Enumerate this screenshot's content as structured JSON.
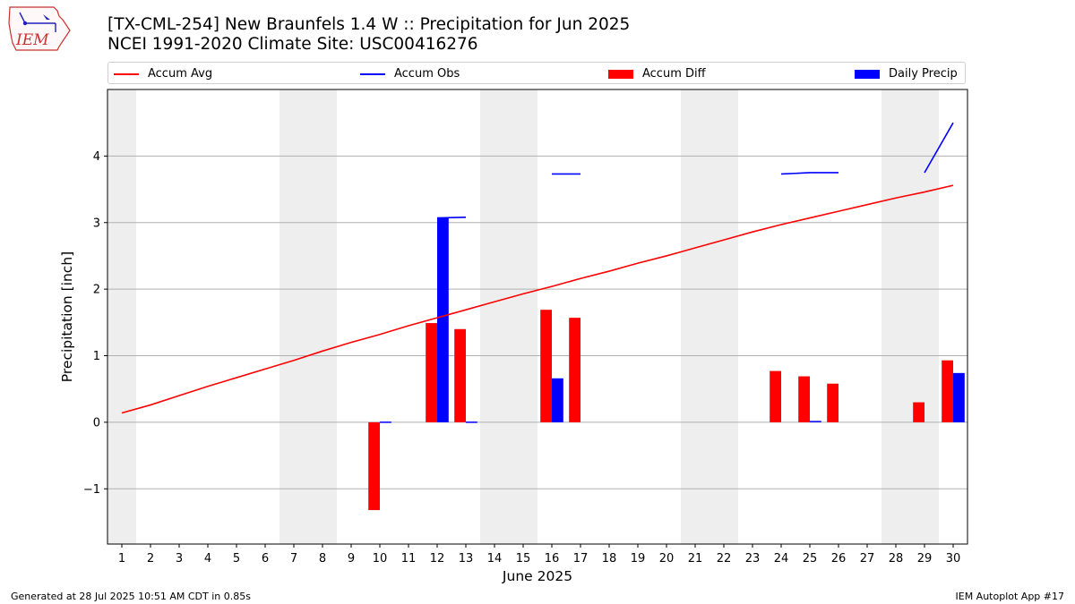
{
  "header": {
    "logo_text": "IEM",
    "title_line1": "[TX-CML-254] New Braunfels 1.4 W :: Precipitation for Jun 2025",
    "title_line2": "NCEI 1991-2020 Climate Site: USC00416276"
  },
  "legend": [
    {
      "label": "Accum Avg",
      "kind": "line",
      "color": "#ff0000"
    },
    {
      "label": "Accum Obs",
      "kind": "line",
      "color": "#0000ff"
    },
    {
      "label": "Accum Diff",
      "kind": "patch",
      "color": "#ff0000"
    },
    {
      "label": "Daily Precip",
      "kind": "patch",
      "color": "#0000ff"
    }
  ],
  "footer": {
    "left": "Generated at 28 Jul 2025 10:51 AM CDT in 0.85s",
    "right": "IEM Autoplot App #17"
  },
  "chart_data": {
    "type": "bar",
    "xlabel": "June 2025",
    "ylabel": "Precipitation [inch]",
    "xlim": [
      0.5,
      30.5
    ],
    "ylim": [
      -1.83,
      5.0
    ],
    "y_ticks": [
      -1,
      0,
      1,
      2,
      3,
      4
    ],
    "y_tick_labels": [
      "−1",
      "0",
      "1",
      "2",
      "3",
      "4"
    ],
    "grid": "y",
    "weekend_shading": [
      [
        0.5,
        1.5
      ],
      [
        6.5,
        8.5
      ],
      [
        13.5,
        15.5
      ],
      [
        20.5,
        22.5
      ],
      [
        27.5,
        29.5
      ]
    ],
    "days": [
      1,
      2,
      3,
      4,
      5,
      6,
      7,
      8,
      9,
      10,
      11,
      12,
      13,
      14,
      15,
      16,
      17,
      18,
      19,
      20,
      21,
      22,
      23,
      24,
      25,
      26,
      27,
      28,
      29,
      30
    ],
    "series": [
      {
        "name": "Accum Avg",
        "type": "line",
        "color": "#ff0000",
        "values": [
          0.14,
          0.26,
          0.4,
          0.54,
          0.67,
          0.8,
          0.93,
          1.07,
          1.2,
          1.32,
          1.45,
          1.57,
          1.69,
          1.81,
          1.93,
          2.04,
          2.16,
          2.27,
          2.39,
          2.5,
          2.62,
          2.74,
          2.86,
          2.97,
          3.07,
          3.17,
          3.27,
          3.37,
          3.46,
          3.56
        ]
      },
      {
        "name": "Accum Obs",
        "type": "line",
        "color": "#0000ff",
        "values": [
          null,
          null,
          null,
          null,
          null,
          null,
          null,
          null,
          null,
          null,
          null,
          3.07,
          3.08,
          null,
          null,
          3.73,
          3.73,
          null,
          null,
          null,
          null,
          null,
          null,
          3.73,
          3.75,
          3.75,
          null,
          null,
          3.75,
          4.5
        ]
      },
      {
        "name": "Accum Diff",
        "type": "bar",
        "color": "#ff0000",
        "values": [
          0,
          0,
          0,
          0,
          0,
          0,
          0,
          0,
          0,
          -1.32,
          0,
          1.49,
          1.4,
          0,
          0,
          1.69,
          1.57,
          0,
          0,
          0,
          0,
          0,
          0,
          0.77,
          0.69,
          0.58,
          0,
          0,
          0.3,
          0.93
        ]
      },
      {
        "name": "Daily Precip",
        "type": "bar",
        "color": "#0000ff",
        "values": [
          0,
          0,
          0,
          0,
          0,
          0,
          0,
          0,
          0,
          0.01,
          0,
          3.07,
          0.01,
          0,
          0,
          0.66,
          0,
          0,
          0,
          0,
          0,
          0,
          0,
          0,
          0.02,
          0,
          0,
          0,
          0,
          0.74
        ]
      }
    ]
  }
}
